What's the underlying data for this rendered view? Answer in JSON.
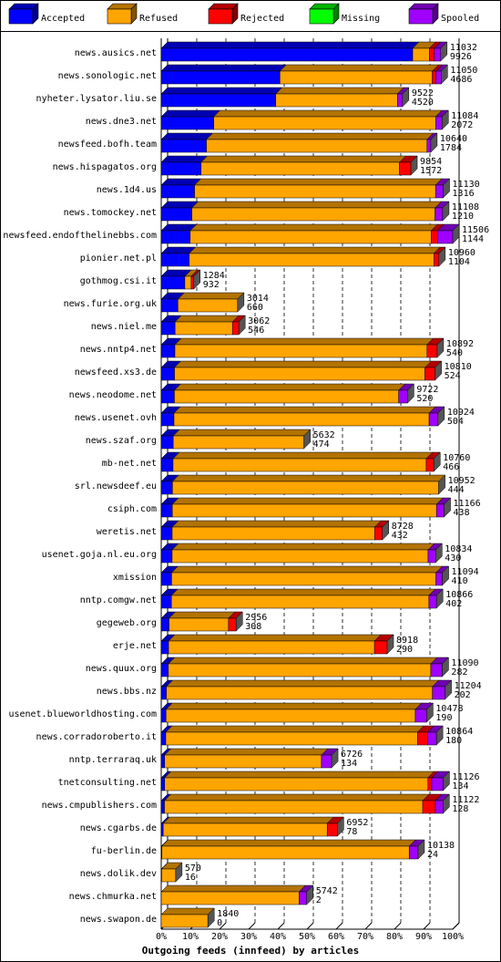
{
  "chart_data": {
    "type": "bar3d-stacked-horizontal",
    "x_axis_label": "Outgoing feeds (innfeed) by articles",
    "categories": [
      "news.ausics.net",
      "news.sonologic.net",
      "nyheter.lysator.liu.se",
      "news.dne3.net",
      "newsfeed.bofh.team",
      "news.hispagatos.org",
      "news.1d4.us",
      "news.tomockey.net",
      "newsfeed.endofthelinebbs.com",
      "pionier.net.pl",
      "gothmog.csi.it",
      "news.furie.org.uk",
      "news.niel.me",
      "news.nntp4.net",
      "newsfeed.xs3.de",
      "news.neodome.net",
      "news.usenet.ovh",
      "news.szaf.org",
      "mb-net.net",
      "srl.newsdeef.eu",
      "csiph.com",
      "weretis.net",
      "usenet.goja.nl.eu.org",
      "xmission",
      "nntp.comgw.net",
      "gegeweb.org",
      "erje.net",
      "news.quux.org",
      "news.bbs.nz",
      "usenet.blueworldhosting.com",
      "news.corradoroberto.it",
      "nntp.terraraq.uk",
      "tnetconsulting.net",
      "news.cmpublishers.com",
      "news.cgarbs.de",
      "fu-berlin.de",
      "news.dolik.dev",
      "news.chmurka.net",
      "news.swapon.de"
    ],
    "totals": [
      11032,
      11050,
      9522,
      11084,
      10640,
      9854,
      11130,
      11108,
      11506,
      10960,
      1284,
      3014,
      3062,
      10892,
      10810,
      9722,
      10924,
      5632,
      10760,
      10952,
      11166,
      8728,
      10834,
      11094,
      10866,
      2956,
      8918,
      11090,
      11204,
      10478,
      10864,
      6726,
      11126,
      11122,
      6952,
      10138,
      570,
      5742,
      1840
    ],
    "series": [
      {
        "name": "Accepted",
        "color": "#0000ff",
        "values": [
          9926,
          4686,
          4520,
          2072,
          1784,
          1572,
          1316,
          1210,
          1144,
          1104,
          932,
          660,
          546,
          540,
          524,
          520,
          504,
          474,
          466,
          444,
          438,
          432,
          430,
          410,
          402,
          308,
          290,
          282,
          202,
          190,
          180,
          134,
          134,
          128,
          78,
          24,
          16,
          2,
          0
        ]
      },
      {
        "name": "Refused",
        "color": "#ffa500",
        "values": [
          656,
          6014,
          4802,
          8762,
          8706,
          7832,
          9514,
          9598,
          9512,
          9656,
          250,
          2354,
          2266,
          9952,
          9886,
          8852,
          10070,
          5158,
          9994,
          10508,
          10428,
          7996,
          10104,
          10434,
          10164,
          2348,
          8128,
          10358,
          10502,
          9838,
          9934,
          6192,
          10392,
          10194,
          6474,
          9764,
          554,
          5440,
          1840
        ]
      },
      {
        "name": "Rejected",
        "color": "#ff0000",
        "values": [
          200,
          150,
          0,
          0,
          0,
          450,
          0,
          0,
          250,
          200,
          102,
          0,
          250,
          400,
          400,
          0,
          0,
          0,
          300,
          0,
          0,
          300,
          0,
          0,
          0,
          300,
          500,
          0,
          0,
          0,
          400,
          0,
          150,
          500,
          400,
          0,
          0,
          0,
          0
        ]
      },
      {
        "name": "Missing",
        "color": "#00ff00",
        "values": [
          0,
          0,
          0,
          0,
          0,
          0,
          0,
          0,
          0,
          0,
          0,
          0,
          0,
          0,
          0,
          0,
          0,
          0,
          0,
          0,
          0,
          0,
          0,
          0,
          0,
          0,
          0,
          0,
          0,
          0,
          0,
          0,
          0,
          0,
          0,
          0,
          0,
          0,
          0
        ]
      },
      {
        "name": "Spooled",
        "color": "#a000ff",
        "values": [
          250,
          200,
          200,
          250,
          150,
          0,
          300,
          300,
          600,
          0,
          0,
          0,
          0,
          0,
          0,
          350,
          350,
          0,
          0,
          0,
          300,
          0,
          300,
          250,
          300,
          0,
          0,
          450,
          500,
          450,
          350,
          400,
          450,
          300,
          0,
          350,
          0,
          300,
          0
        ]
      }
    ],
    "xlim": [
      0,
      11506
    ],
    "xticks": [
      {
        "value": 0,
        "label": "0%"
      },
      {
        "value": 1150.6,
        "label": "10%"
      },
      {
        "value": 2301.2,
        "label": "20%"
      },
      {
        "value": 3451.8,
        "label": "30%"
      },
      {
        "value": 4602.4,
        "label": "40%"
      },
      {
        "value": 5753,
        "label": "50%"
      },
      {
        "value": 6903.6,
        "label": "60%"
      },
      {
        "value": 8054.2,
        "label": "70%"
      },
      {
        "value": 9204.8,
        "label": "80%"
      },
      {
        "value": 10355.4,
        "label": "90%"
      },
      {
        "value": 11506,
        "label": "100%"
      }
    ],
    "grid": true
  }
}
